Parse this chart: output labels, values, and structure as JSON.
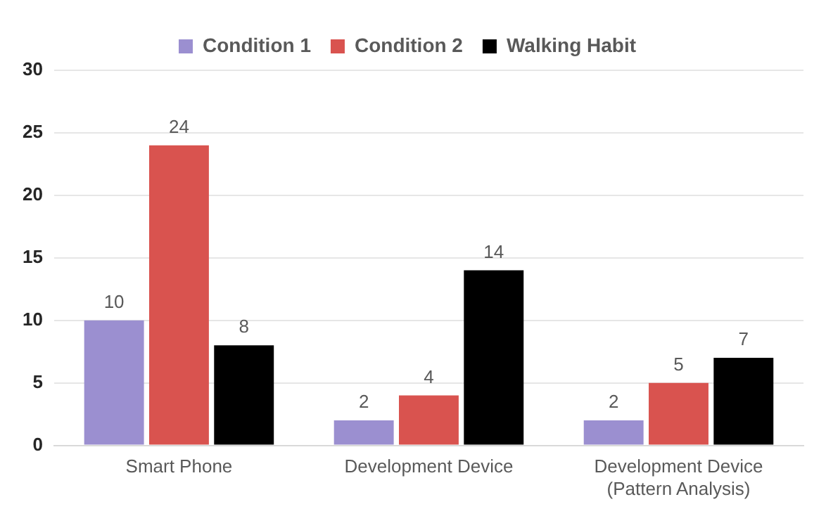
{
  "chart_data": {
    "type": "bar",
    "categories": [
      "Smart Phone",
      "Development Device",
      "Development Device (Pattern Analysis)"
    ],
    "series": [
      {
        "name": "Condition 1",
        "color": "#9b8fd0",
        "values": [
          10,
          2,
          2
        ]
      },
      {
        "name": "Condition 2",
        "color": "#d9534f",
        "values": [
          24,
          4,
          5
        ]
      },
      {
        "name": "Walking Habit",
        "color": "#000000",
        "values": [
          8,
          14,
          7
        ]
      }
    ],
    "ylim": [
      0,
      30
    ],
    "yticks": [
      0,
      5,
      10,
      15,
      20,
      25,
      30
    ],
    "grid": "y",
    "legend": "top",
    "data_labels": true
  }
}
